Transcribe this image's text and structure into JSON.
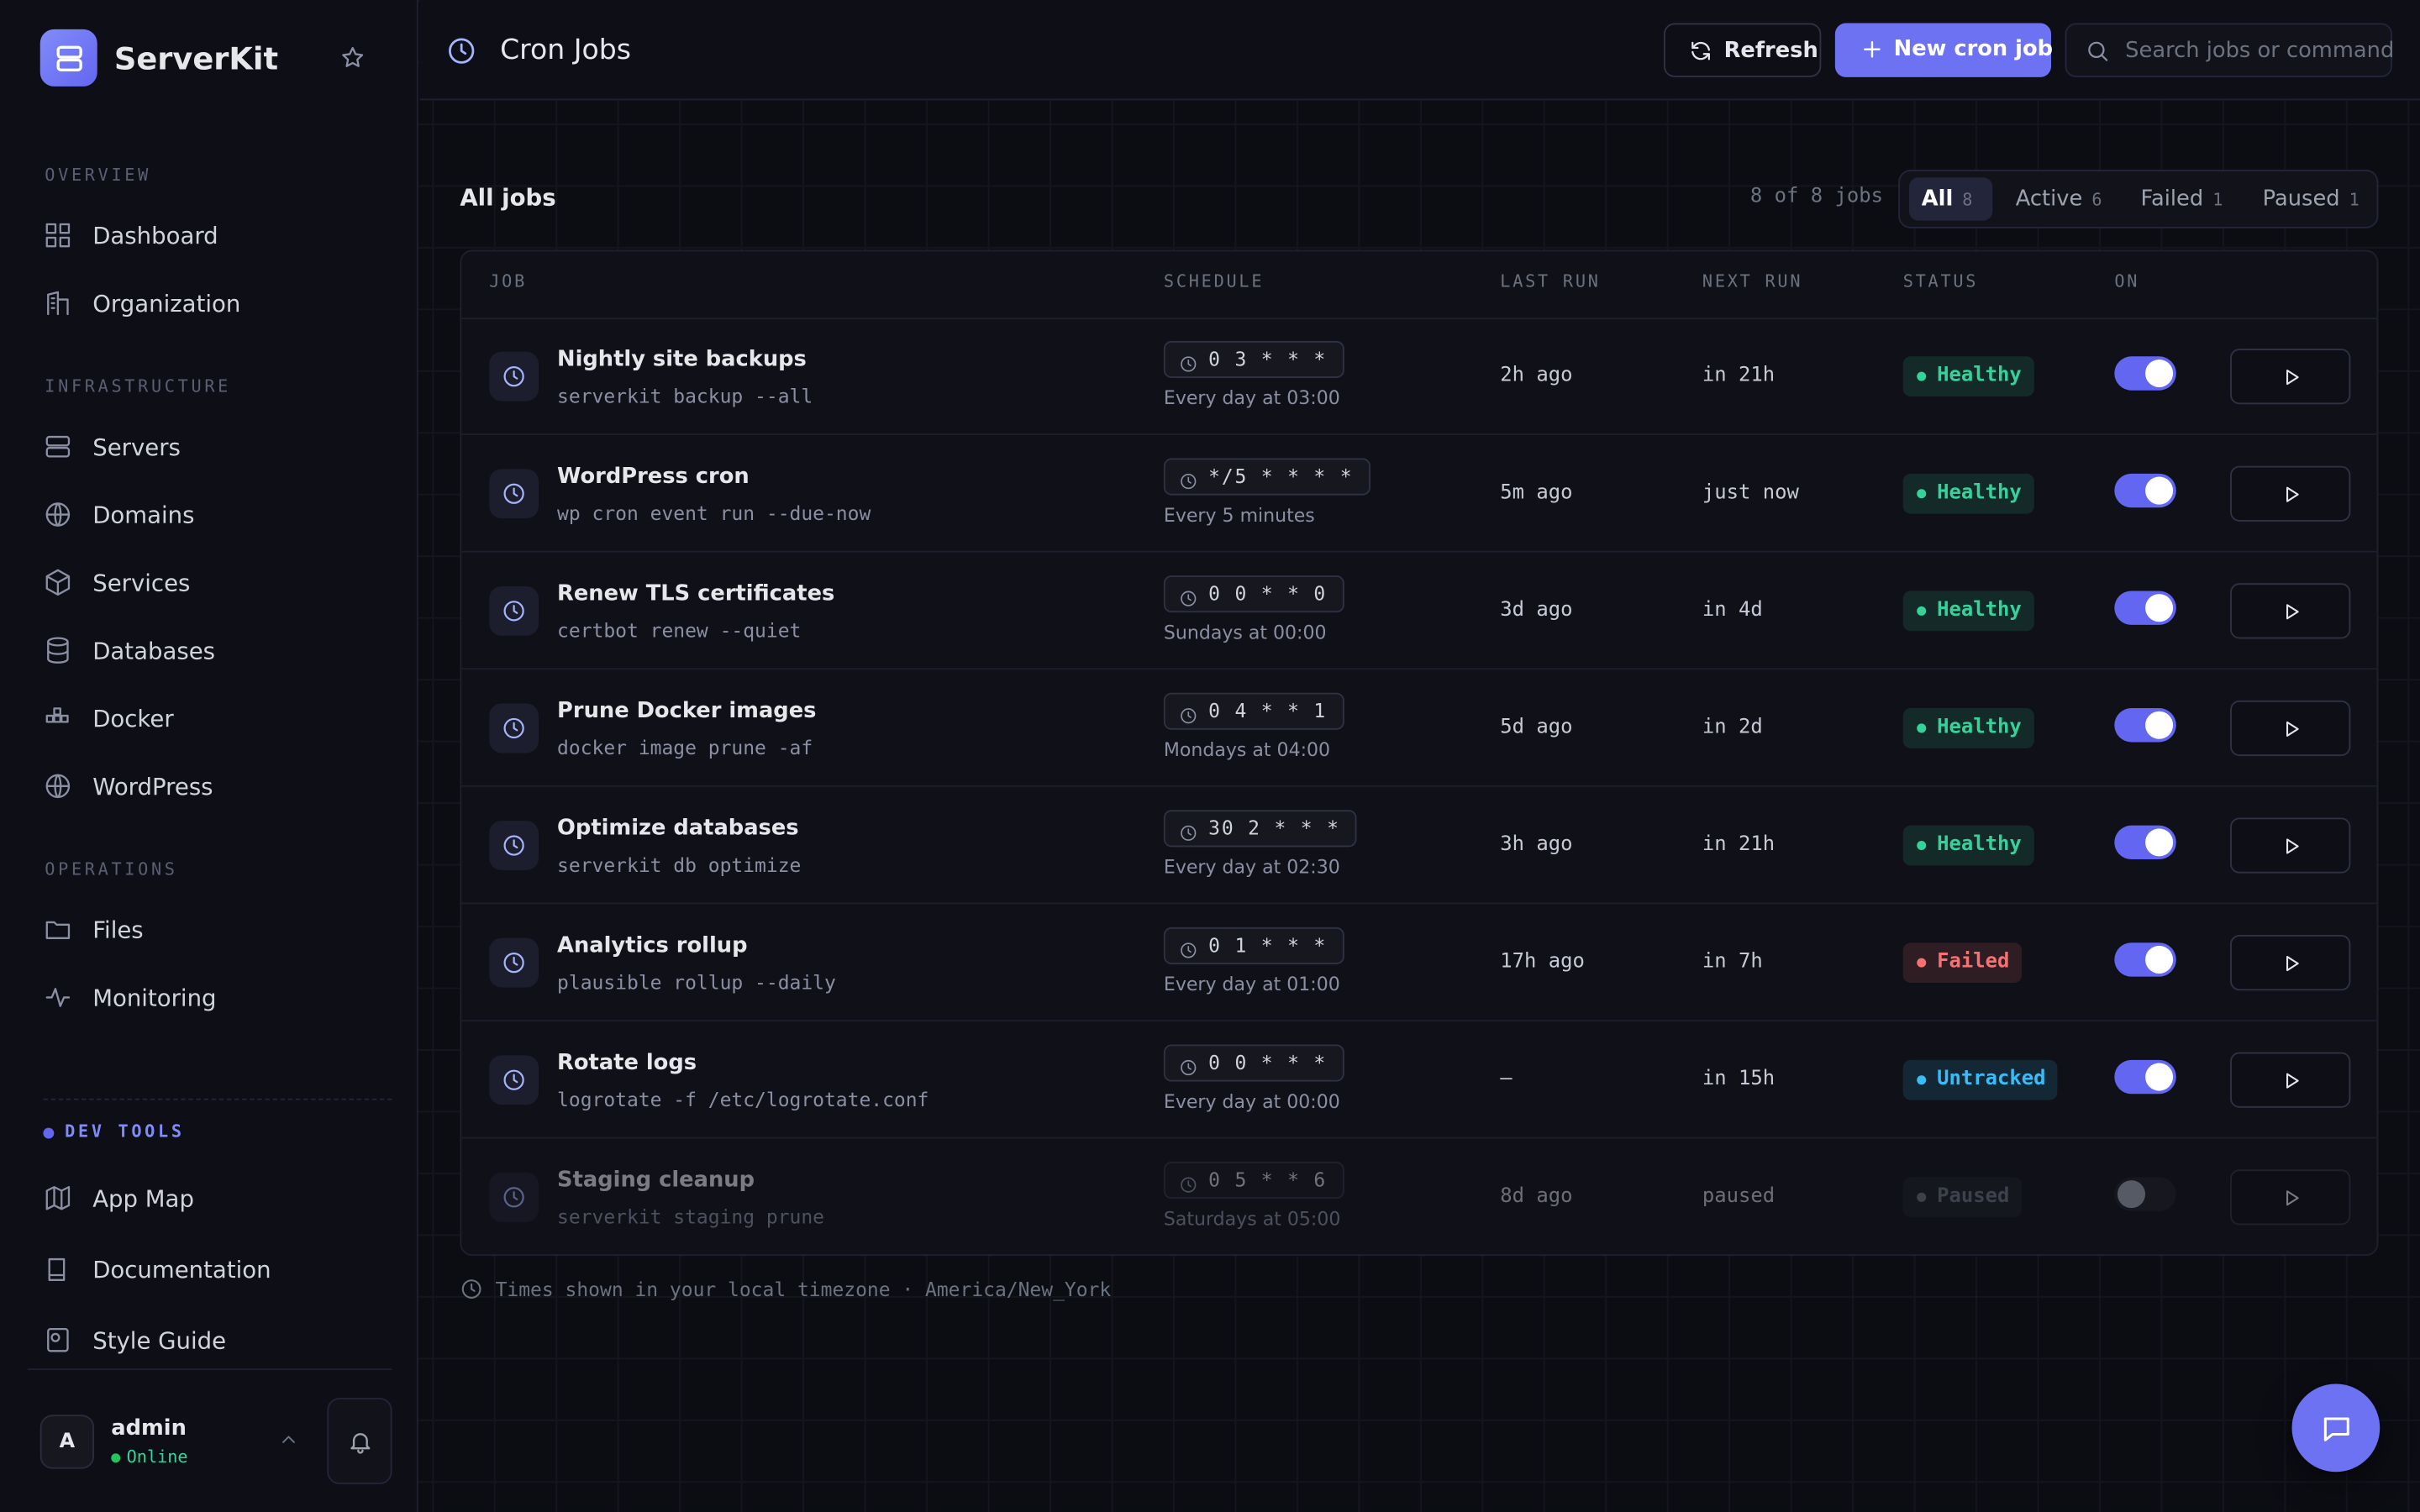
{
  "brand": "ServerKit",
  "sidebar": {
    "sections": [
      {
        "title": "OVERVIEW",
        "items": [
          "Dashboard",
          "Organization"
        ]
      },
      {
        "title": "INFRASTRUCTURE",
        "items": [
          "Servers",
          "Domains",
          "Services",
          "Databases",
          "Docker",
          "WordPress"
        ]
      },
      {
        "title": "OPERATIONS",
        "items": [
          "Files",
          "Monitoring"
        ]
      },
      {
        "title": "DEV TOOLS",
        "items": [
          "App Map",
          "Documentation",
          "Style Guide"
        ]
      }
    ]
  },
  "user": {
    "initial": "A",
    "name": "admin",
    "status": "Online"
  },
  "header": {
    "title": "Cron Jobs",
    "refresh": "Refresh",
    "new_job": "New cron job",
    "search_placeholder": "Search jobs or command"
  },
  "list": {
    "title": "All jobs",
    "count": "8 of 8 jobs",
    "filters": [
      {
        "label": "All",
        "count": 8
      },
      {
        "label": "Active",
        "count": 6
      },
      {
        "label": "Failed",
        "count": 1
      },
      {
        "label": "Paused",
        "count": 1
      }
    ]
  },
  "table": {
    "columns": [
      "JOB",
      "SCHEDULE",
      "LAST RUN",
      "NEXT RUN",
      "STATUS",
      "ON"
    ],
    "rows": [
      {
        "name": "Nightly site backups",
        "command": "serverkit backup --all",
        "cron": "0 3 * * *",
        "schedule": "Every day at 03:00",
        "last_run": "2h ago",
        "next_run": "in 21h",
        "status": "Healthy",
        "status_color": "#34d399",
        "enabled": true
      },
      {
        "name": "WordPress cron",
        "command": "wp cron event run --due-now",
        "cron": "*/5 * * * *",
        "schedule": "Every 5 minutes",
        "last_run": "5m ago",
        "next_run": "just now",
        "status": "Healthy",
        "status_color": "#34d399",
        "enabled": true
      },
      {
        "name": "Renew TLS certificates",
        "command": "certbot renew --quiet",
        "cron": "0 0 * * 0",
        "schedule": "Sundays at 00:00",
        "last_run": "3d ago",
        "next_run": "in 4d",
        "status": "Healthy",
        "status_color": "#34d399",
        "enabled": true
      },
      {
        "name": "Prune Docker images",
        "command": "docker image prune -af",
        "cron": "0 4 * * 1",
        "schedule": "Mondays at 04:00",
        "last_run": "5d ago",
        "next_run": "in 2d",
        "status": "Healthy",
        "status_color": "#34d399",
        "enabled": true
      },
      {
        "name": "Optimize databases",
        "command": "serverkit db optimize",
        "cron": "30 2 * * *",
        "schedule": "Every day at 02:30",
        "last_run": "3h ago",
        "next_run": "in 21h",
        "status": "Healthy",
        "status_color": "#34d399",
        "enabled": true
      },
      {
        "name": "Analytics rollup",
        "command": "plausible rollup --daily",
        "cron": "0 1 * * *",
        "schedule": "Every day at 01:00",
        "last_run": "17h ago",
        "next_run": "in 7h",
        "status": "Failed",
        "status_color": "#f87171",
        "enabled": true
      },
      {
        "name": "Rotate logs",
        "command": "logrotate -f /etc/logrotate.conf",
        "cron": "0 0 * * *",
        "schedule": "Every day at 00:00",
        "last_run": "–",
        "next_run": "in 15h",
        "status": "Untracked",
        "status_color": "#38bdf8",
        "enabled": true
      },
      {
        "name": "Staging cleanup",
        "command": "serverkit staging prune",
        "cron": "0 5 * * 6",
        "schedule": "Saturdays at 05:00",
        "last_run": "8d ago",
        "next_run": "paused",
        "status": "Paused",
        "status_color": "#6b7280",
        "enabled": false
      }
    ]
  },
  "footnote": "Times shown in your local timezone · America/New_York"
}
